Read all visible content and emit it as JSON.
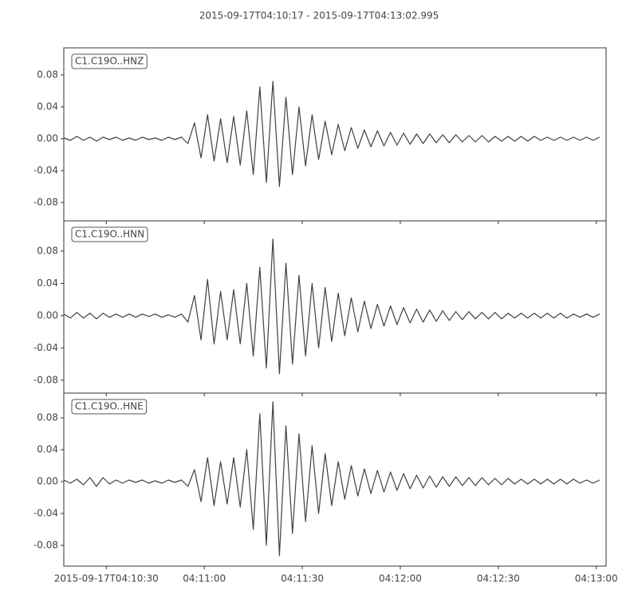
{
  "chart_data": [
    {
      "type": "line",
      "title": "2015-09-17T04:10:17  -  2015-09-17T04:13:02.995",
      "x": [
        0,
        2,
        4,
        6,
        8,
        10,
        12,
        14,
        16,
        18,
        20,
        22,
        24,
        26,
        28,
        30,
        32,
        34,
        36,
        38,
        40,
        42,
        44,
        46,
        48,
        50,
        52,
        54,
        56,
        58,
        60,
        62,
        64,
        66,
        68,
        70,
        72,
        74,
        76,
        78,
        80,
        82,
        84,
        86,
        88,
        90,
        92,
        94,
        96,
        98,
        100,
        102,
        104,
        106,
        108,
        110,
        112,
        114,
        116,
        118,
        120,
        122,
        124,
        126,
        128,
        130,
        132,
        134,
        136,
        138,
        140,
        142,
        144,
        146,
        148,
        150,
        152,
        154,
        156,
        158,
        160,
        162,
        164
      ],
      "series": [
        {
          "name": "C1.C19O..HNZ",
          "color": "#404040",
          "values": [
            0.001,
            -0.002,
            0.003,
            -0.002,
            0.002,
            -0.003,
            0.002,
            -0.001,
            0.002,
            -0.002,
            0.001,
            -0.002,
            0.002,
            -0.001,
            0.001,
            -0.002,
            0.002,
            -0.001,
            0.002,
            -0.006,
            0.02,
            -0.024,
            0.03,
            -0.028,
            0.025,
            -0.03,
            0.028,
            -0.033,
            0.035,
            -0.045,
            0.065,
            -0.055,
            0.072,
            -0.06,
            0.052,
            -0.045,
            0.04,
            -0.034,
            0.03,
            -0.026,
            0.022,
            -0.02,
            0.018,
            -0.015,
            0.014,
            -0.012,
            0.011,
            -0.01,
            0.01,
            -0.009,
            0.008,
            -0.008,
            0.007,
            -0.007,
            0.006,
            -0.006,
            0.006,
            -0.005,
            0.005,
            -0.005,
            0.005,
            -0.004,
            0.004,
            -0.004,
            0.004,
            -0.004,
            0.003,
            -0.003,
            0.003,
            -0.003,
            0.003,
            -0.003,
            0.003,
            -0.002,
            0.002,
            -0.002,
            0.002,
            -0.002,
            0.002,
            -0.002,
            0.002,
            -0.002,
            0.002
          ]
        }
      ],
      "xlim": [
        0,
        165.995
      ],
      "ylim": [
        -0.103,
        0.114
      ],
      "yticks": [
        -0.08,
        -0.04,
        {
          "value": 0,
          "label": "0.00"
        },
        0.04,
        0.08
      ]
    },
    {
      "type": "line",
      "x": [
        0,
        2,
        4,
        6,
        8,
        10,
        12,
        14,
        16,
        18,
        20,
        22,
        24,
        26,
        28,
        30,
        32,
        34,
        36,
        38,
        40,
        42,
        44,
        46,
        48,
        50,
        52,
        54,
        56,
        58,
        60,
        62,
        64,
        66,
        68,
        70,
        72,
        74,
        76,
        78,
        80,
        82,
        84,
        86,
        88,
        90,
        92,
        94,
        96,
        98,
        100,
        102,
        104,
        106,
        108,
        110,
        112,
        114,
        116,
        118,
        120,
        122,
        124,
        126,
        128,
        130,
        132,
        134,
        136,
        138,
        140,
        142,
        144,
        146,
        148,
        150,
        152,
        154,
        156,
        158,
        160,
        162,
        164
      ],
      "series": [
        {
          "name": "C1.C19O..HNN",
          "color": "#404040",
          "values": [
            0.002,
            -0.003,
            0.004,
            -0.003,
            0.003,
            -0.004,
            0.003,
            -0.002,
            0.002,
            -0.002,
            0.002,
            -0.002,
            0.002,
            -0.001,
            0.002,
            -0.002,
            0.001,
            -0.002,
            0.002,
            -0.008,
            0.025,
            -0.03,
            0.045,
            -0.035,
            0.03,
            -0.03,
            0.032,
            -0.035,
            0.04,
            -0.05,
            0.06,
            -0.065,
            0.095,
            -0.072,
            0.065,
            -0.06,
            0.05,
            -0.05,
            0.04,
            -0.04,
            0.035,
            -0.032,
            0.028,
            -0.025,
            0.022,
            -0.02,
            0.018,
            -0.016,
            0.014,
            -0.013,
            0.012,
            -0.011,
            0.01,
            -0.009,
            0.008,
            -0.008,
            0.007,
            -0.007,
            0.006,
            -0.006,
            0.005,
            -0.005,
            0.005,
            -0.004,
            0.004,
            -0.004,
            0.004,
            -0.004,
            0.003,
            -0.003,
            0.003,
            -0.003,
            0.003,
            -0.003,
            0.003,
            -0.003,
            0.003,
            -0.003,
            0.002,
            -0.002,
            0.002,
            -0.002,
            0.002
          ]
        }
      ],
      "xlim": [
        0,
        165.995
      ],
      "ylim": [
        -0.096,
        0.1175
      ],
      "yticks": [
        -0.08,
        -0.04,
        {
          "value": 0,
          "label": "0.00"
        },
        0.04,
        0.08
      ]
    },
    {
      "type": "line",
      "x": [
        0,
        2,
        4,
        6,
        8,
        10,
        12,
        14,
        16,
        18,
        20,
        22,
        24,
        26,
        28,
        30,
        32,
        34,
        36,
        38,
        40,
        42,
        44,
        46,
        48,
        50,
        52,
        54,
        56,
        58,
        60,
        62,
        64,
        66,
        68,
        70,
        72,
        74,
        76,
        78,
        80,
        82,
        84,
        86,
        88,
        90,
        92,
        94,
        96,
        98,
        100,
        102,
        104,
        106,
        108,
        110,
        112,
        114,
        116,
        118,
        120,
        122,
        124,
        126,
        128,
        130,
        132,
        134,
        136,
        138,
        140,
        142,
        144,
        146,
        148,
        150,
        152,
        154,
        156,
        158,
        160,
        162,
        164
      ],
      "series": [
        {
          "name": "C1.C19O..HNE",
          "color": "#404040",
          "values": [
            0.002,
            -0.002,
            0.003,
            -0.004,
            0.005,
            -0.006,
            0.005,
            -0.003,
            0.002,
            -0.002,
            0.002,
            -0.001,
            0.002,
            -0.002,
            0.001,
            -0.002,
            0.002,
            -0.001,
            0.002,
            -0.006,
            0.015,
            -0.025,
            0.03,
            -0.03,
            0.025,
            -0.028,
            0.03,
            -0.032,
            0.04,
            -0.06,
            0.085,
            -0.08,
            0.1,
            -0.093,
            0.07,
            -0.065,
            0.06,
            -0.05,
            0.045,
            -0.04,
            0.035,
            -0.03,
            0.025,
            -0.022,
            0.02,
            -0.018,
            0.016,
            -0.015,
            0.014,
            -0.013,
            0.012,
            -0.011,
            0.01,
            -0.009,
            0.008,
            -0.008,
            0.007,
            -0.007,
            0.006,
            -0.006,
            0.006,
            -0.005,
            0.005,
            -0.005,
            0.005,
            -0.004,
            0.004,
            -0.004,
            0.004,
            -0.003,
            0.003,
            -0.003,
            0.003,
            -0.003,
            0.003,
            -0.003,
            0.003,
            -0.003,
            0.003,
            -0.002,
            0.002,
            -0.002,
            0.002
          ]
        }
      ],
      "xlim": [
        0,
        165.995
      ],
      "ylim": [
        -0.106,
        0.111
      ],
      "yticks": [
        -0.08,
        -0.04,
        {
          "value": 0,
          "label": "0.00"
        },
        0.04,
        0.08
      ],
      "xticks": [
        {
          "value": 13,
          "label": "2015-09-17T04:10:30"
        },
        {
          "value": 43,
          "label": "04:11:00"
        },
        {
          "value": 73,
          "label": "04:11:30"
        },
        {
          "value": 103,
          "label": "04:12:00"
        },
        {
          "value": 133,
          "label": "04:12:30"
        },
        {
          "value": 163,
          "label": "04:13:00"
        }
      ]
    }
  ]
}
